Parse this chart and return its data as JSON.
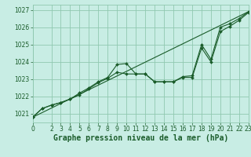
{
  "title": "Graphe pression niveau de la mer (hPa)",
  "bg_color": "#c8ede4",
  "grid_color": "#90c8b0",
  "line_color": "#1a5c2a",
  "x_min": 0,
  "x_max": 23,
  "y_min": 1020.5,
  "y_max": 1027.3,
  "y_ticks": [
    1021,
    1022,
    1023,
    1024,
    1025,
    1026,
    1027
  ],
  "x_ticks": [
    0,
    2,
    3,
    4,
    5,
    6,
    7,
    8,
    9,
    10,
    11,
    12,
    13,
    14,
    15,
    16,
    17,
    18,
    19,
    20,
    21,
    22,
    23
  ],
  "series1_x": [
    0,
    1,
    2,
    3,
    4,
    5,
    6,
    7,
    8,
    9,
    10,
    11,
    12,
    13,
    14,
    15,
    16,
    17,
    18,
    19,
    20,
    21,
    22,
    23
  ],
  "series1_y": [
    1020.8,
    1021.3,
    1021.5,
    1021.65,
    1021.85,
    1022.2,
    1022.5,
    1022.85,
    1023.1,
    1023.85,
    1023.9,
    1023.3,
    1023.3,
    1022.85,
    1022.85,
    1022.85,
    1023.1,
    1023.1,
    1024.8,
    1024.0,
    1025.75,
    1026.05,
    1026.4,
    1026.85
  ],
  "series2_x": [
    0,
    1,
    2,
    3,
    4,
    5,
    6,
    7,
    8,
    9,
    10,
    11,
    12,
    13,
    14,
    15,
    16,
    17,
    18,
    19,
    20,
    21,
    22,
    23
  ],
  "series2_y": [
    1020.8,
    1021.3,
    1021.5,
    1021.65,
    1021.85,
    1022.1,
    1022.45,
    1022.8,
    1023.05,
    1023.4,
    1023.3,
    1023.3,
    1023.3,
    1022.85,
    1022.85,
    1022.85,
    1023.15,
    1023.2,
    1025.0,
    1024.15,
    1026.0,
    1026.2,
    1026.5,
    1026.9
  ],
  "trend_x": [
    0,
    23
  ],
  "trend_y": [
    1020.8,
    1026.9
  ],
  "title_fontsize": 7.0,
  "tick_fontsize": 5.5
}
